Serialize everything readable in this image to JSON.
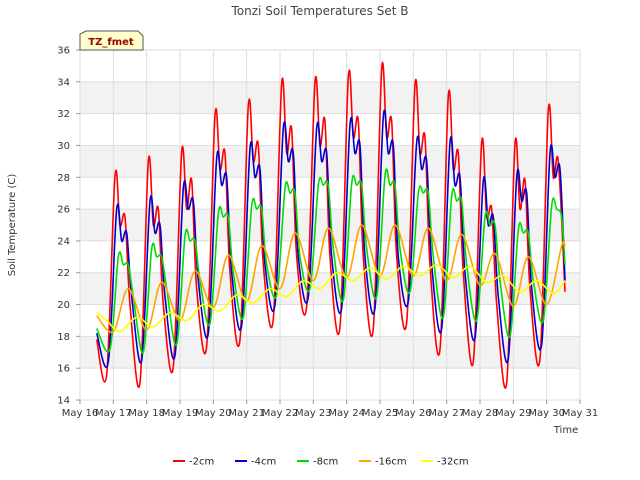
{
  "chart_data": {
    "type": "line",
    "title": "Tonzi Soil Temperatures Set B",
    "xlabel": "Time",
    "ylabel": "Soil Temperature (C)",
    "badge": "TZ_fmet",
    "ylim": [
      14,
      36
    ],
    "yticks": [
      14,
      16,
      18,
      20,
      22,
      24,
      26,
      28,
      30,
      32,
      34,
      36
    ],
    "xlim": [
      0,
      15
    ],
    "xticks": [
      {
        "x": 0,
        "label": "May 16"
      },
      {
        "x": 1,
        "label": "May 17"
      },
      {
        "x": 2,
        "label": "May 18"
      },
      {
        "x": 3,
        "label": "May 19"
      },
      {
        "x": 4,
        "label": "May 20"
      },
      {
        "x": 5,
        "label": "May 21"
      },
      {
        "x": 6,
        "label": "May 22"
      },
      {
        "x": 7,
        "label": "May 23"
      },
      {
        "x": 8,
        "label": "May 24"
      },
      {
        "x": 9,
        "label": "May 25"
      },
      {
        "x": 10,
        "label": "May 26"
      },
      {
        "x": 11,
        "label": "May 27"
      },
      {
        "x": 12,
        "label": "May 28"
      },
      {
        "x": 13,
        "label": "May 29"
      },
      {
        "x": 14,
        "label": "May 30"
      },
      {
        "x": 15,
        "label": "May 31"
      }
    ],
    "grid": true,
    "legend_position": "bottom",
    "x_unit": "days since May 16",
    "series": [
      {
        "name": "-2cm",
        "color": "#ff0000",
        "points": [
          [
            0.5,
            17.8
          ],
          [
            0.8,
            15.6
          ],
          [
            1.05,
            28.1
          ],
          [
            1.2,
            25.0
          ],
          [
            1.35,
            25.5
          ],
          [
            1.5,
            20.0
          ],
          [
            1.8,
            15.1
          ],
          [
            2.05,
            29.0
          ],
          [
            2.2,
            25.0
          ],
          [
            2.35,
            26.0
          ],
          [
            2.5,
            20.0
          ],
          [
            2.8,
            16.1
          ],
          [
            3.05,
            29.6
          ],
          [
            3.2,
            26.0
          ],
          [
            3.35,
            27.8
          ],
          [
            3.5,
            21.0
          ],
          [
            3.8,
            17.4
          ],
          [
            4.05,
            31.9
          ],
          [
            4.2,
            28.5
          ],
          [
            4.35,
            29.5
          ],
          [
            4.5,
            22.0
          ],
          [
            4.8,
            17.8
          ],
          [
            5.05,
            32.5
          ],
          [
            5.2,
            29.0
          ],
          [
            5.35,
            30.0
          ],
          [
            5.5,
            22.5
          ],
          [
            5.8,
            19.1
          ],
          [
            6.05,
            33.9
          ],
          [
            6.2,
            29.5
          ],
          [
            6.35,
            31.0
          ],
          [
            6.5,
            23.0
          ],
          [
            6.8,
            19.9
          ],
          [
            7.05,
            34.0
          ],
          [
            7.2,
            30.0
          ],
          [
            7.35,
            31.5
          ],
          [
            7.5,
            23.0
          ],
          [
            7.8,
            18.6
          ],
          [
            8.05,
            34.3
          ],
          [
            8.2,
            30.5
          ],
          [
            8.35,
            31.5
          ],
          [
            8.5,
            23.0
          ],
          [
            8.8,
            18.5
          ],
          [
            9.05,
            34.8
          ],
          [
            9.2,
            30.5
          ],
          [
            9.35,
            31.5
          ],
          [
            9.5,
            23.0
          ],
          [
            9.8,
            18.9
          ],
          [
            10.05,
            33.8
          ],
          [
            10.2,
            29.5
          ],
          [
            10.35,
            30.5
          ],
          [
            10.5,
            22.5
          ],
          [
            10.8,
            17.2
          ],
          [
            11.05,
            33.1
          ],
          [
            11.2,
            28.5
          ],
          [
            11.35,
            29.5
          ],
          [
            11.5,
            22.0
          ],
          [
            11.8,
            16.4
          ],
          [
            12.05,
            30.2
          ],
          [
            12.2,
            25.5
          ],
          [
            12.35,
            26.0
          ],
          [
            12.5,
            20.0
          ],
          [
            12.8,
            15.1
          ],
          [
            13.05,
            30.1
          ],
          [
            13.2,
            26.0
          ],
          [
            13.35,
            27.8
          ],
          [
            13.5,
            21.0
          ],
          [
            13.8,
            16.6
          ],
          [
            14.05,
            32.2
          ],
          [
            14.2,
            28.0
          ],
          [
            14.35,
            29.0
          ],
          [
            14.55,
            20.8
          ]
        ]
      },
      {
        "name": "-4cm",
        "color": "#0000cc",
        "points": [
          [
            0.5,
            18.2
          ],
          [
            0.85,
            16.4
          ],
          [
            1.1,
            26.0
          ],
          [
            1.25,
            24.0
          ],
          [
            1.4,
            24.5
          ],
          [
            1.55,
            20.5
          ],
          [
            1.85,
            16.5
          ],
          [
            2.1,
            26.5
          ],
          [
            2.25,
            24.5
          ],
          [
            2.4,
            25.0
          ],
          [
            2.55,
            20.5
          ],
          [
            2.85,
            16.8
          ],
          [
            3.1,
            27.3
          ],
          [
            3.25,
            26.0
          ],
          [
            3.4,
            26.5
          ],
          [
            3.55,
            21.5
          ],
          [
            3.85,
            18.2
          ],
          [
            4.1,
            29.2
          ],
          [
            4.25,
            27.5
          ],
          [
            4.4,
            28.0
          ],
          [
            4.55,
            22.0
          ],
          [
            4.85,
            18.7
          ],
          [
            5.1,
            29.8
          ],
          [
            5.25,
            28.0
          ],
          [
            5.4,
            28.5
          ],
          [
            5.55,
            22.5
          ],
          [
            5.85,
            20.0
          ],
          [
            6.1,
            31.1
          ],
          [
            6.25,
            29.0
          ],
          [
            6.4,
            29.5
          ],
          [
            6.55,
            23.0
          ],
          [
            6.85,
            20.5
          ],
          [
            7.1,
            31.1
          ],
          [
            7.25,
            29.0
          ],
          [
            7.4,
            29.5
          ],
          [
            7.55,
            23.0
          ],
          [
            7.85,
            19.8
          ],
          [
            8.1,
            31.3
          ],
          [
            8.25,
            29.5
          ],
          [
            8.4,
            30.0
          ],
          [
            8.55,
            23.0
          ],
          [
            8.85,
            19.8
          ],
          [
            9.1,
            31.8
          ],
          [
            9.25,
            29.5
          ],
          [
            9.4,
            30.0
          ],
          [
            9.55,
            23.0
          ],
          [
            9.85,
            20.2
          ],
          [
            10.1,
            30.2
          ],
          [
            10.25,
            28.5
          ],
          [
            10.4,
            29.0
          ],
          [
            10.55,
            22.5
          ],
          [
            10.85,
            18.5
          ],
          [
            11.1,
            30.2
          ],
          [
            11.25,
            27.5
          ],
          [
            11.4,
            28.0
          ],
          [
            11.55,
            22.0
          ],
          [
            11.85,
            17.9
          ],
          [
            12.1,
            27.8
          ],
          [
            12.25,
            25.0
          ],
          [
            12.4,
            25.5
          ],
          [
            12.55,
            20.5
          ],
          [
            12.85,
            16.6
          ],
          [
            13.1,
            28.0
          ],
          [
            13.25,
            26.5
          ],
          [
            13.4,
            27.0
          ],
          [
            13.55,
            21.0
          ],
          [
            13.85,
            17.5
          ],
          [
            14.1,
            29.5
          ],
          [
            14.25,
            28.0
          ],
          [
            14.4,
            28.5
          ],
          [
            14.55,
            21.5
          ]
        ]
      },
      {
        "name": "-8cm",
        "color": "#00dd00",
        "points": [
          [
            0.5,
            18.5
          ],
          [
            0.9,
            17.2
          ],
          [
            1.15,
            23.0
          ],
          [
            1.3,
            22.5
          ],
          [
            1.45,
            22.5
          ],
          [
            1.6,
            20.5
          ],
          [
            1.9,
            17.0
          ],
          [
            2.15,
            23.5
          ],
          [
            2.3,
            23.0
          ],
          [
            2.45,
            23.0
          ],
          [
            2.6,
            21.0
          ],
          [
            2.9,
            17.5
          ],
          [
            3.15,
            24.3
          ],
          [
            3.3,
            24.0
          ],
          [
            3.45,
            24.0
          ],
          [
            3.6,
            21.5
          ],
          [
            3.9,
            18.8
          ],
          [
            4.15,
            25.7
          ],
          [
            4.3,
            25.5
          ],
          [
            4.45,
            25.5
          ],
          [
            4.6,
            22.0
          ],
          [
            4.9,
            19.2
          ],
          [
            5.15,
            26.2
          ],
          [
            5.3,
            26.0
          ],
          [
            5.45,
            26.0
          ],
          [
            5.6,
            22.5
          ],
          [
            5.9,
            20.6
          ],
          [
            6.15,
            27.3
          ],
          [
            6.3,
            27.0
          ],
          [
            6.45,
            27.0
          ],
          [
            6.6,
            23.0
          ],
          [
            6.9,
            21.0
          ],
          [
            7.15,
            27.5
          ],
          [
            7.3,
            27.5
          ],
          [
            7.45,
            27.5
          ],
          [
            7.6,
            23.5
          ],
          [
            7.9,
            20.3
          ],
          [
            8.15,
            27.6
          ],
          [
            8.3,
            27.5
          ],
          [
            8.45,
            27.5
          ],
          [
            8.6,
            23.5
          ],
          [
            8.9,
            20.5
          ],
          [
            9.15,
            28.1
          ],
          [
            9.3,
            27.5
          ],
          [
            9.45,
            27.5
          ],
          [
            9.6,
            23.5
          ],
          [
            9.9,
            20.8
          ],
          [
            10.15,
            27.0
          ],
          [
            10.3,
            27.0
          ],
          [
            10.45,
            27.0
          ],
          [
            10.6,
            23.0
          ],
          [
            10.9,
            19.2
          ],
          [
            11.15,
            26.8
          ],
          [
            11.3,
            26.5
          ],
          [
            11.45,
            26.5
          ],
          [
            11.6,
            22.5
          ],
          [
            11.9,
            19.0
          ],
          [
            12.15,
            25.5
          ],
          [
            12.3,
            25.0
          ],
          [
            12.45,
            25.0
          ],
          [
            12.6,
            21.5
          ],
          [
            12.9,
            18.0
          ],
          [
            13.15,
            24.7
          ],
          [
            13.3,
            24.5
          ],
          [
            13.45,
            24.5
          ],
          [
            13.6,
            21.5
          ],
          [
            13.9,
            19.0
          ],
          [
            14.15,
            26.2
          ],
          [
            14.3,
            26.0
          ],
          [
            14.45,
            25.5
          ],
          [
            14.55,
            22.5
          ]
        ]
      },
      {
        "name": "-16cm",
        "color": "#ffa500",
        "points": [
          [
            0.5,
            19.3
          ],
          [
            1.0,
            18.3
          ],
          [
            1.45,
            21.0
          ],
          [
            2.0,
            18.4
          ],
          [
            2.45,
            21.4
          ],
          [
            3.0,
            19.0
          ],
          [
            3.45,
            22.1
          ],
          [
            4.0,
            19.8
          ],
          [
            4.45,
            23.1
          ],
          [
            5.0,
            20.2
          ],
          [
            5.45,
            23.7
          ],
          [
            6.0,
            21.0
          ],
          [
            6.45,
            24.5
          ],
          [
            7.0,
            21.5
          ],
          [
            7.45,
            24.8
          ],
          [
            8.0,
            21.7
          ],
          [
            8.45,
            25.0
          ],
          [
            9.0,
            21.8
          ],
          [
            9.45,
            25.0
          ],
          [
            10.0,
            21.8
          ],
          [
            10.45,
            24.8
          ],
          [
            11.0,
            21.5
          ],
          [
            11.45,
            24.4
          ],
          [
            12.0,
            21.2
          ],
          [
            12.45,
            23.2
          ],
          [
            13.0,
            19.9
          ],
          [
            13.45,
            23.0
          ],
          [
            14.0,
            20.0
          ],
          [
            14.45,
            23.7
          ],
          [
            14.55,
            23.6
          ]
        ]
      },
      {
        "name": "-32cm",
        "color": "#ffff00",
        "points": [
          [
            0.5,
            19.5
          ],
          [
            0.8,
            19.0
          ],
          [
            1.2,
            18.3
          ],
          [
            1.7,
            19.2
          ],
          [
            2.2,
            18.6
          ],
          [
            2.7,
            19.5
          ],
          [
            3.2,
            19.0
          ],
          [
            3.7,
            20.0
          ],
          [
            4.2,
            19.6
          ],
          [
            4.7,
            20.6
          ],
          [
            5.2,
            20.1
          ],
          [
            5.7,
            21.0
          ],
          [
            6.2,
            20.5
          ],
          [
            6.7,
            21.5
          ],
          [
            7.2,
            21.0
          ],
          [
            7.7,
            22.0
          ],
          [
            8.2,
            21.5
          ],
          [
            8.7,
            22.3
          ],
          [
            9.2,
            21.6
          ],
          [
            9.7,
            22.4
          ],
          [
            10.2,
            21.8
          ],
          [
            10.7,
            22.5
          ],
          [
            11.2,
            21.7
          ],
          [
            11.7,
            22.4
          ],
          [
            12.2,
            21.4
          ],
          [
            12.7,
            21.8
          ],
          [
            13.2,
            20.8
          ],
          [
            13.7,
            21.5
          ],
          [
            14.2,
            20.7
          ],
          [
            14.55,
            21.5
          ]
        ]
      }
    ]
  }
}
